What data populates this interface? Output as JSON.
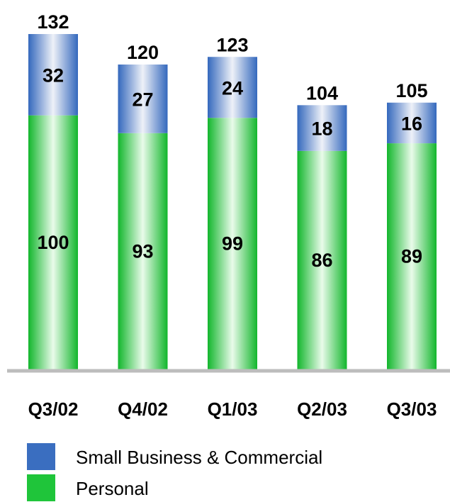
{
  "chart_data": {
    "type": "bar",
    "stacked": true,
    "categories": [
      "Q3/02",
      "Q4/02",
      "Q1/03",
      "Q2/03",
      "Q3/03"
    ],
    "series": [
      {
        "name": "Personal",
        "values": [
          100,
          93,
          99,
          86,
          89
        ],
        "color": "#1fc53a"
      },
      {
        "name": "Small Business & Commercial",
        "values": [
          32,
          27,
          24,
          18,
          16
        ],
        "color": "#3a6ec0"
      }
    ],
    "totals": [
      132,
      120,
      123,
      104,
      105
    ],
    "title": "",
    "xlabel": "",
    "ylabel": "",
    "ylim": [
      0,
      132
    ],
    "grid": false,
    "legend_position": "bottom-left"
  },
  "legend": [
    {
      "name": "Small Business & Commercial",
      "color": "#3a6ec0"
    },
    {
      "name": "Personal",
      "color": "#1fc53a"
    }
  ]
}
